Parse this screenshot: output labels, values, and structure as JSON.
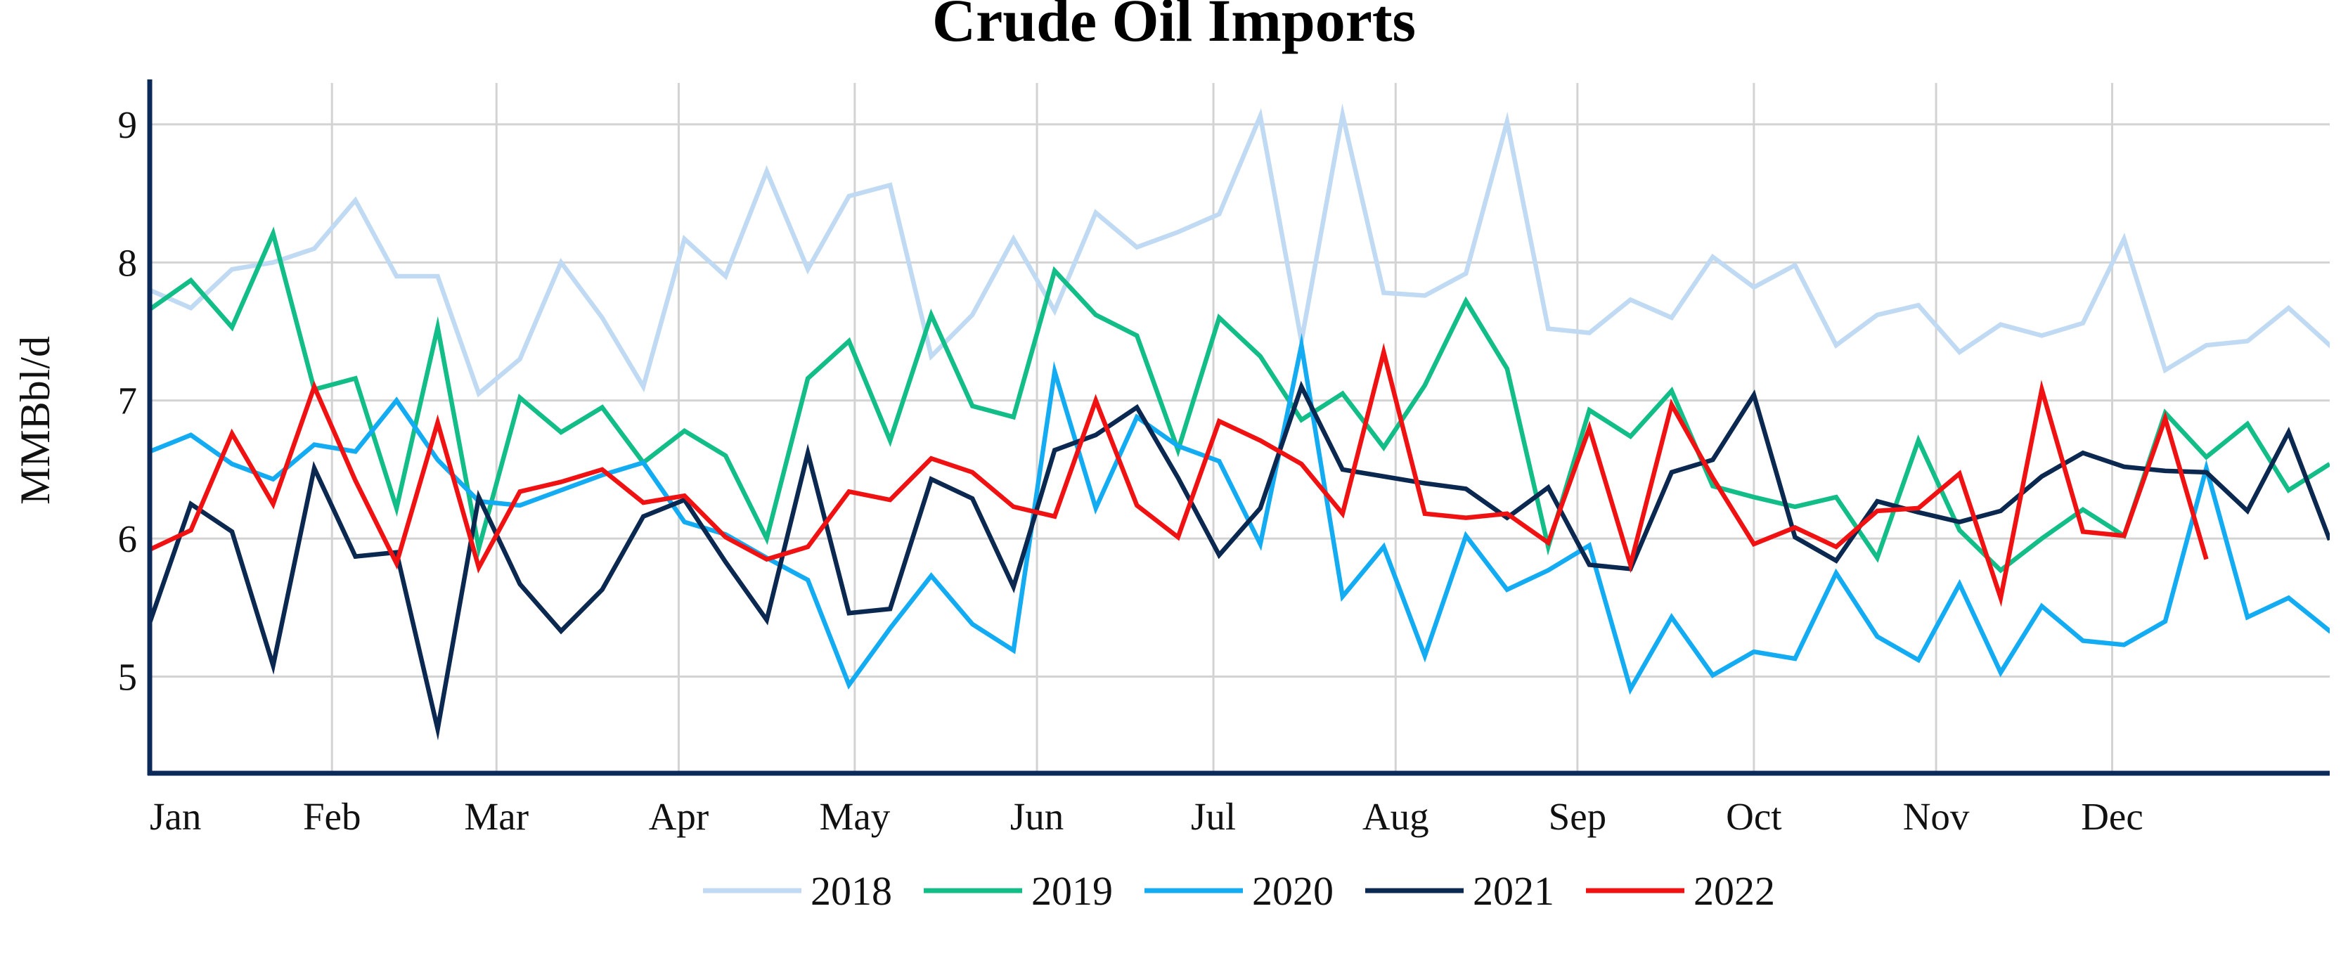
{
  "chart_data": {
    "type": "line",
    "title": "Crude Oil Imports",
    "xlabel": "",
    "ylabel": "MMBbl/d",
    "x_ticks": [
      "Jan",
      "Feb",
      "Mar",
      "Apr",
      "May",
      "Jun",
      "Jul",
      "Aug",
      "Sep",
      "Oct",
      "Nov",
      "Dec"
    ],
    "y_ticks": [
      5,
      6,
      7,
      8,
      9
    ],
    "ylim": [
      4.3,
      9.3
    ],
    "xlim_weeks": [
      0,
      53
    ],
    "x_unit": "week of year",
    "grid": true,
    "legend_position": "bottom-center",
    "series": [
      {
        "name": "2018",
        "color": "#bfdaf2",
        "values": [
          7.8,
          7.67,
          7.95,
          8.0,
          8.1,
          8.45,
          7.9,
          7.9,
          7.05,
          7.3,
          8.0,
          7.6,
          7.1,
          8.17,
          7.9,
          8.66,
          7.95,
          8.48,
          8.56,
          7.32,
          7.62,
          8.17,
          7.65,
          8.36,
          8.11,
          8.22,
          8.35,
          9.06,
          7.43,
          9.07,
          7.78,
          7.76,
          7.92,
          9.02,
          7.52,
          7.49,
          7.73,
          7.6,
          8.04,
          7.82,
          7.98,
          7.4,
          7.62,
          7.69,
          7.35,
          7.55,
          7.47,
          7.56,
          8.17,
          7.22,
          7.4,
          7.43,
          7.67,
          7.4,
          7.55
        ]
      },
      {
        "name": "2019",
        "color": "#12bd87",
        "values": [
          7.66,
          7.87,
          7.53,
          8.21,
          7.08,
          7.16,
          6.22,
          7.53,
          5.93,
          7.02,
          6.77,
          6.95,
          6.55,
          6.78,
          6.6,
          6.0,
          7.16,
          7.43,
          6.71,
          7.62,
          6.96,
          6.88,
          7.94,
          7.62,
          7.47,
          6.64,
          7.6,
          7.32,
          6.86,
          7.05,
          6.66,
          7.11,
          7.72,
          7.23,
          5.94,
          6.93,
          6.74,
          7.07,
          6.38,
          6.3,
          6.23,
          6.3,
          5.86,
          6.71,
          6.06,
          5.77,
          6.0,
          6.21,
          6.02,
          6.91,
          6.59,
          6.83,
          6.35,
          6.54
        ]
      },
      {
        "name": "2020",
        "color": "#13acf2",
        "values": [
          6.63,
          6.75,
          6.54,
          6.43,
          6.68,
          6.63,
          7.0,
          6.57,
          6.27,
          6.24,
          6.35,
          6.46,
          6.55,
          6.12,
          6.03,
          5.86,
          5.7,
          4.94,
          5.35,
          5.73,
          5.38,
          5.19,
          7.21,
          6.22,
          6.88,
          6.67,
          6.56,
          5.96,
          7.4,
          5.58,
          5.94,
          5.15,
          6.02,
          5.63,
          5.77,
          5.95,
          4.91,
          5.43,
          5.01,
          5.18,
          5.13,
          5.75,
          5.29,
          5.12,
          5.67,
          5.03,
          5.51,
          5.26,
          5.23,
          5.4,
          6.51,
          5.43,
          5.57,
          5.33,
          5.36
        ]
      },
      {
        "name": "2021",
        "color": "#0a2850",
        "values": [
          5.39,
          6.25,
          6.05,
          5.08,
          6.51,
          5.87,
          5.9,
          4.62,
          6.3,
          5.67,
          5.33,
          5.63,
          6.16,
          6.28,
          5.83,
          5.41,
          6.62,
          5.46,
          5.49,
          6.43,
          6.29,
          5.65,
          6.64,
          6.75,
          6.95,
          6.44,
          5.88,
          6.22,
          7.1,
          6.5,
          6.45,
          6.4,
          6.36,
          6.15,
          6.37,
          5.81,
          5.78,
          6.48,
          6.57,
          7.04,
          6.01,
          5.84,
          6.27,
          6.19,
          6.12,
          6.2,
          6.45,
          6.62,
          6.52,
          6.49,
          6.48,
          6.2,
          6.77,
          5.99
        ]
      },
      {
        "name": "2022",
        "color": "#f01212",
        "values": [
          5.92,
          6.06,
          6.76,
          6.25,
          7.1,
          6.42,
          5.82,
          6.84,
          5.79,
          6.34,
          6.41,
          6.5,
          6.26,
          6.31,
          6.01,
          5.85,
          5.94,
          6.34,
          6.28,
          6.58,
          6.48,
          6.23,
          6.16,
          7.0,
          6.24,
          6.01,
          6.85,
          6.71,
          6.54,
          6.18,
          7.35,
          6.18,
          6.15,
          6.18,
          5.97,
          6.8,
          5.81,
          6.97,
          6.44,
          5.96,
          6.08,
          5.94,
          6.2,
          6.22,
          6.47,
          5.57,
          7.08,
          6.05,
          6.02,
          6.87,
          5.85
        ]
      }
    ]
  }
}
